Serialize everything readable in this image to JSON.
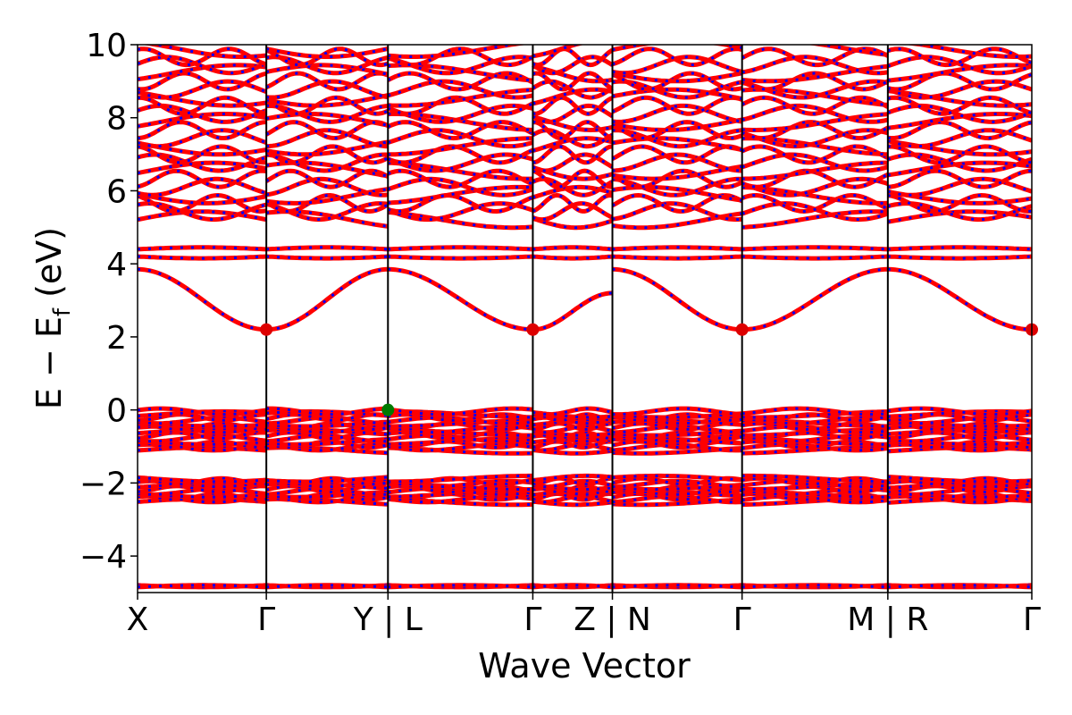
{
  "chart_data": {
    "type": "line",
    "title": "",
    "xlabel": "Wave Vector",
    "ylabel_main": "E − E",
    "ylabel_sub": "f",
    "ylabel_unit": "(eV)",
    "ylim": [
      -5,
      10
    ],
    "yticks": [
      -4,
      -2,
      0,
      2,
      4,
      6,
      8,
      10
    ],
    "ytick_labels": [
      "−4",
      "−2",
      "0",
      "2",
      "4",
      "6",
      "8",
      "10"
    ],
    "x_points": [
      {
        "label": "X",
        "x": 0.0
      },
      {
        "label": "Γ",
        "x": 0.144
      },
      {
        "label": "Y | L",
        "x": 0.28
      },
      {
        "label": "Γ",
        "x": 0.442
      },
      {
        "label": "Z | N",
        "x": 0.531
      },
      {
        "label": "Γ",
        "x": 0.676
      },
      {
        "label": "M | R",
        "x": 0.839
      },
      {
        "label": "Γ",
        "x": 1.0
      }
    ],
    "vertical_lines_x": [
      0.144,
      0.28,
      0.442,
      0.531,
      0.676,
      0.839
    ],
    "colors": {
      "spin_up": "#ff0000",
      "spin_down": "#0000ff",
      "cbm": "#dd0000",
      "vbm": "#007a00",
      "vline": "#000000"
    },
    "series": [
      {
        "name": "",
        "kind": "parabolic_upper",
        "edge": 3.85,
        "min": 2.2
      },
      {
        "name": "",
        "kind": "flat_pair",
        "levels": [
          4.2,
          4.4
        ]
      },
      {
        "name": "",
        "kind": "band_group",
        "range": [
          5.1,
          10.0
        ],
        "count": 22
      },
      {
        "name": "",
        "kind": "dense_group",
        "range": [
          -1.15,
          0.0
        ],
        "count": 14
      },
      {
        "name": "",
        "kind": "dense_group",
        "range": [
          -2.55,
          -1.85
        ],
        "count": 10
      },
      {
        "name": "",
        "kind": "flat_pair",
        "levels": [
          -4.8,
          -4.85
        ]
      }
    ],
    "cbm_points": [
      {
        "x": 0.144,
        "y": 2.2
      },
      {
        "x": 0.442,
        "y": 2.2
      },
      {
        "x": 0.676,
        "y": 2.2
      },
      {
        "x": 1.0,
        "y": 2.2
      }
    ],
    "vbm_points": [
      {
        "x": 0.28,
        "y": 0.0
      }
    ]
  }
}
